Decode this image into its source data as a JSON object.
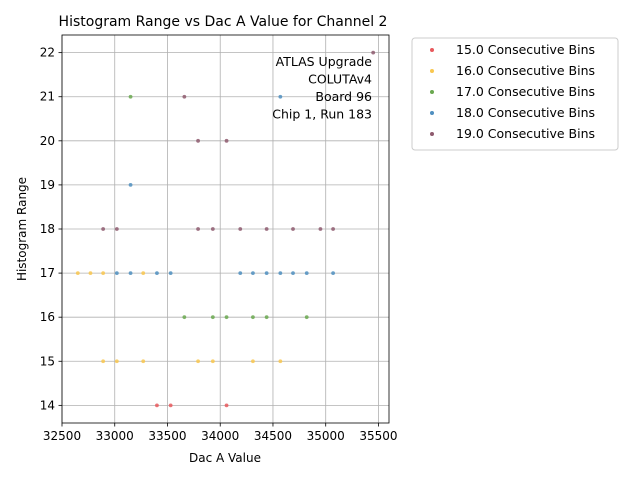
{
  "chart_data": {
    "type": "scatter",
    "title": "Histogram Range vs Dac A Value for Channel 2",
    "xlabel": "Dac A Value",
    "ylabel": "Histogram Range",
    "xlim": [
      32500,
      35600
    ],
    "ylim": [
      13.6,
      22.4
    ],
    "xticks": [
      32500,
      33000,
      33500,
      34000,
      34500,
      35000,
      35500
    ],
    "yticks": [
      14,
      15,
      16,
      17,
      18,
      19,
      20,
      21,
      22
    ],
    "grid": true,
    "legend_position": "outside-right",
    "annotation": [
      "ATLAS Upgrade",
      "COLUTAv4",
      "Board 96",
      "Chip 1, Run 183"
    ],
    "series": [
      {
        "name": "15.0 Consecutive Bins",
        "color": "#e8595d",
        "points": [
          [
            33400,
            14
          ],
          [
            33530,
            14
          ],
          [
            34060,
            14
          ]
        ]
      },
      {
        "name": "16.0 Consecutive Bins",
        "color": "#f9c74f",
        "points": [
          [
            32650,
            17
          ],
          [
            32770,
            17
          ],
          [
            32890,
            17
          ],
          [
            33270,
            17
          ],
          [
            32890,
            15
          ],
          [
            33020,
            15
          ],
          [
            33270,
            15
          ],
          [
            33790,
            15
          ],
          [
            33930,
            15
          ],
          [
            34310,
            15
          ],
          [
            34570,
            15
          ]
        ]
      },
      {
        "name": "17.0 Consecutive Bins",
        "color": "#6aa84f",
        "points": [
          [
            33150,
            21
          ],
          [
            33660,
            16
          ],
          [
            33930,
            16
          ],
          [
            34060,
            16
          ],
          [
            34310,
            16
          ],
          [
            34440,
            16
          ],
          [
            34820,
            16
          ]
        ]
      },
      {
        "name": "18.0 Consecutive Bins",
        "color": "#4f8fc0",
        "points": [
          [
            33150,
            19
          ],
          [
            34570,
            21
          ],
          [
            33020,
            17
          ],
          [
            33150,
            17
          ],
          [
            33400,
            17
          ],
          [
            33530,
            17
          ],
          [
            34190,
            17
          ],
          [
            34310,
            17
          ],
          [
            34440,
            17
          ],
          [
            34570,
            17
          ],
          [
            34690,
            17
          ],
          [
            34820,
            17
          ],
          [
            35070,
            17
          ]
        ]
      },
      {
        "name": "19.0 Consecutive Bins",
        "color": "#8e5a6e",
        "points": [
          [
            35450,
            22
          ],
          [
            33660,
            21
          ],
          [
            33790,
            20
          ],
          [
            34060,
            20
          ],
          [
            32890,
            18
          ],
          [
            33020,
            18
          ],
          [
            33790,
            18
          ],
          [
            33930,
            18
          ],
          [
            34190,
            18
          ],
          [
            34440,
            18
          ],
          [
            34690,
            18
          ],
          [
            34950,
            18
          ],
          [
            35070,
            18
          ]
        ]
      }
    ]
  }
}
